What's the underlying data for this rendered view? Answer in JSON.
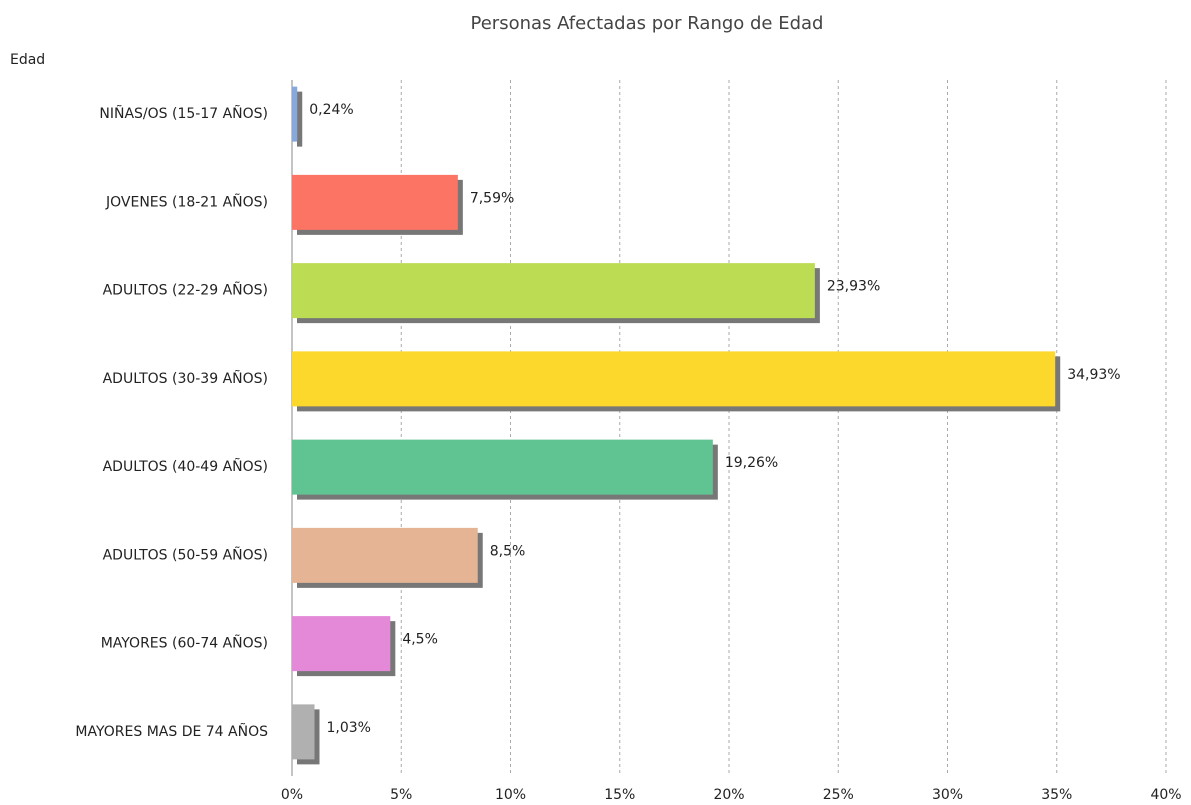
{
  "chart_data": {
    "type": "bar",
    "orientation": "horizontal",
    "title": "Personas Afectadas por Rango de Edad",
    "y_label": "Edad",
    "categories": [
      "NIÑAS/OS (15-17 AÑOS)",
      "JOVENES (18-21 AÑOS)",
      "ADULTOS (22-29 AÑOS)",
      "ADULTOS (30-39 AÑOS)",
      "ADULTOS (40-49 AÑOS)",
      "ADULTOS (50-59 AÑOS)",
      "MAYORES (60-74 AÑOS)",
      "MAYORES MAS DE 74 AÑOS"
    ],
    "values": [
      0.24,
      7.59,
      23.93,
      34.93,
      19.26,
      8.5,
      4.5,
      1.03
    ],
    "value_labels": [
      "0,24%",
      "7,59%",
      "23,93%",
      "34,93%",
      "19,26%",
      "8,5%",
      "4,5%",
      "1,03%"
    ],
    "colors": [
      "#86a8dc",
      "#fc7464",
      "#bcdc54",
      "#fcd82c",
      "#60c492",
      "#e4b494",
      "#e488d8",
      "#b0b0b0"
    ],
    "xlim": [
      0,
      40
    ],
    "xticks": [
      {
        "value": 0,
        "label": "0%"
      },
      {
        "value": 5,
        "label": "5%"
      },
      {
        "value": 10,
        "label": "10%"
      },
      {
        "value": 15,
        "label": "15%"
      },
      {
        "value": 20,
        "label": "20%"
      },
      {
        "value": 25,
        "label": "25%"
      },
      {
        "value": 30,
        "label": "30%"
      },
      {
        "value": 35,
        "label": "35%"
      },
      {
        "value": 40,
        "label": "40%"
      }
    ],
    "grid": true
  }
}
